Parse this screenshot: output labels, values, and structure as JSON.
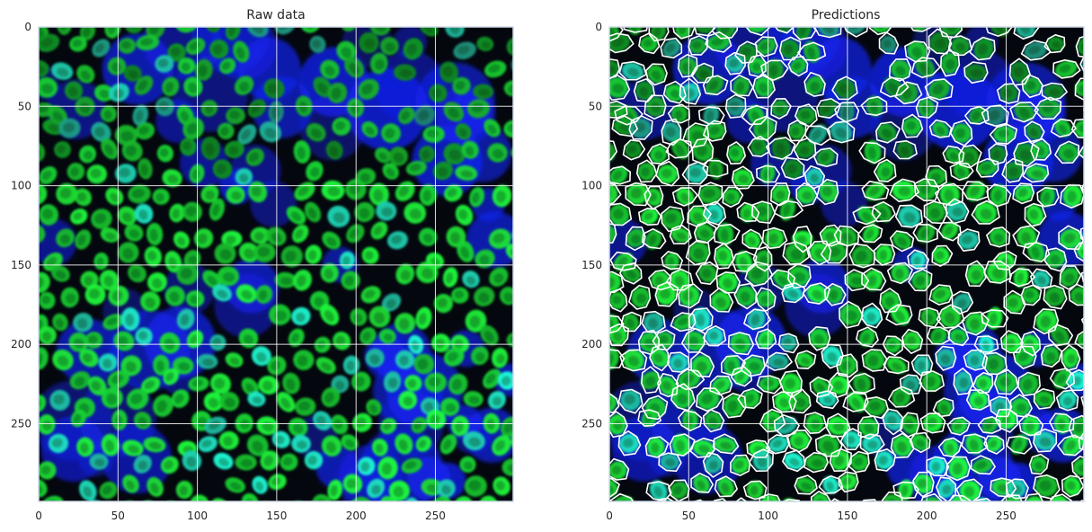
{
  "panels": [
    {
      "title": "Raw data",
      "x_ticks": [
        "0",
        "50",
        "100",
        "150",
        "200",
        "250"
      ],
      "y_ticks": [
        "0",
        "50",
        "100",
        "150",
        "200",
        "250"
      ],
      "xlim": [
        0,
        299
      ],
      "ylim": [
        299,
        0
      ],
      "grid": true,
      "image_description_colors": {
        "nucleus": "#0ee03a",
        "background": "#1a22ff",
        "dark": "#020308"
      }
    },
    {
      "title": "Predictions",
      "x_ticks": [
        "0",
        "50",
        "100",
        "150",
        "200",
        "250"
      ],
      "y_ticks": [
        "0",
        "50",
        "100",
        "150",
        "200",
        "250"
      ],
      "xlim": [
        0,
        299
      ],
      "ylim": [
        299,
        0
      ],
      "grid": true,
      "overlay": "cell-boundary-outlines",
      "image_description_colors": {
        "nucleus": "#0ee03a",
        "background": "#1a22ff",
        "outline": "#ffffff"
      }
    }
  ],
  "colors": {
    "grid": "#ffffff",
    "axes_edge": "#cfd8e8",
    "text": "#262626"
  }
}
